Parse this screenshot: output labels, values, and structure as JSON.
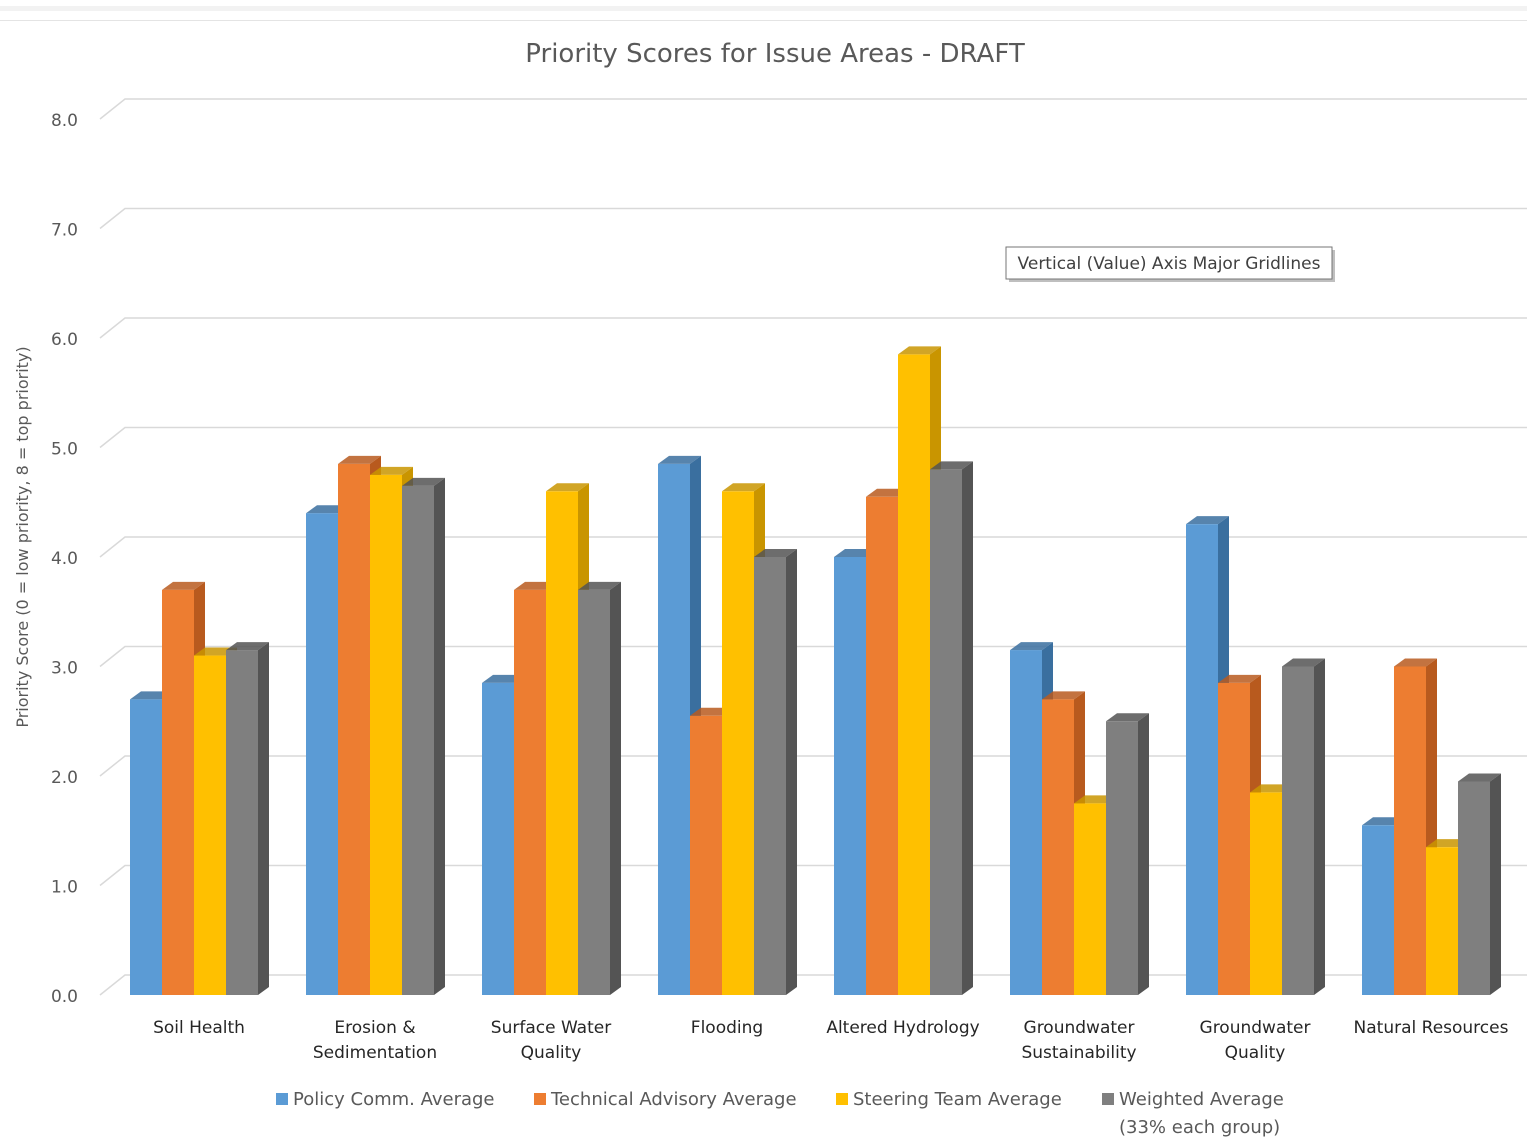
{
  "chart_data": {
    "type": "bar",
    "title": "Priority Scores for Issue Areas - DRAFT",
    "xlabel": "",
    "ylabel": "Priority Score (0 = low priority, 8 = top priority)",
    "ylim": [
      0,
      8
    ],
    "yticks": [
      "0.0",
      "1.0",
      "2.0",
      "3.0",
      "4.0",
      "5.0",
      "6.0",
      "7.0",
      "8.0"
    ],
    "grid": true,
    "legend_position": "bottom",
    "categories": [
      [
        "Soil Health"
      ],
      [
        "Erosion &",
        "Sedimentation"
      ],
      [
        "Surface Water",
        "Quality"
      ],
      [
        "Flooding"
      ],
      [
        "Altered Hydrology"
      ],
      [
        "Groundwater",
        "Sustainability"
      ],
      [
        "Groundwater",
        "Quality"
      ],
      [
        "Natural Resources"
      ]
    ],
    "series": [
      {
        "name": "Policy Comm. Average",
        "color": "#5b9bd5",
        "side": "#3a6f9f",
        "values": [
          2.7,
          4.4,
          2.85,
          4.85,
          4.0,
          3.15,
          4.3,
          1.55
        ]
      },
      {
        "name": "Technical Advisory Average",
        "color": "#ed7d31",
        "side": "#b85a1e",
        "values": [
          3.7,
          4.85,
          3.7,
          2.55,
          4.55,
          2.7,
          2.85,
          3.0
        ]
      },
      {
        "name": "Steering Team Average",
        "color": "#ffc000",
        "side": "#c99500",
        "values": [
          3.1,
          4.75,
          4.6,
          4.6,
          5.85,
          1.75,
          1.85,
          1.35
        ]
      },
      {
        "name": "Weighted Average",
        "name_line2": "(33% each group)",
        "color": "#7f7f7f",
        "side": "#545454",
        "values": [
          3.15,
          4.65,
          3.7,
          4.0,
          4.8,
          2.5,
          3.0,
          1.95
        ]
      }
    ],
    "annotation": "Vertical (Value) Axis Major Gridlines"
  }
}
